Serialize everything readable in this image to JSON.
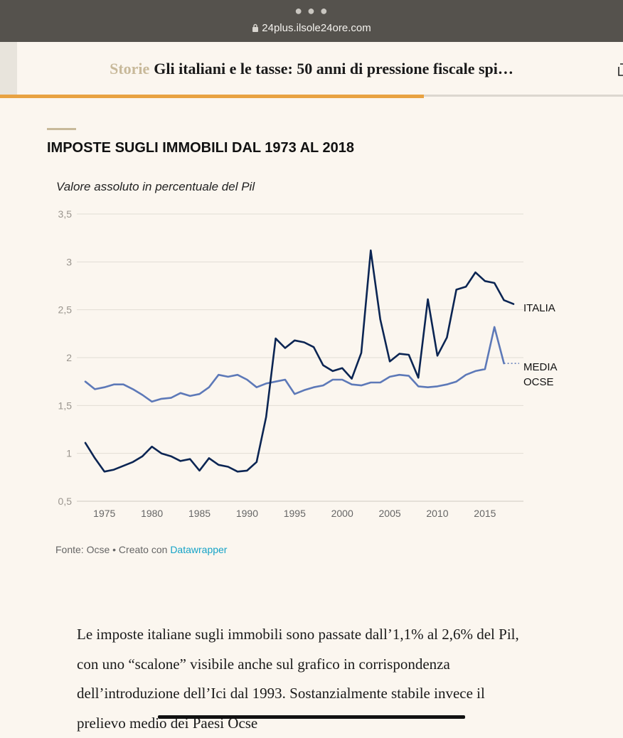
{
  "browser": {
    "url": "24plus.ilsole24ore.com"
  },
  "header": {
    "section": "Storie",
    "title": "Gli italiani e le tasse: 50 anni di pressione fiscale spi…",
    "progress": 0.68
  },
  "chart": {
    "title": "IMPOSTE SUGLI IMMOBILI DAL 1973 AL 2018",
    "subtitle": "Valore assoluto in percentuale del Pil"
  },
  "chart_data": {
    "type": "line",
    "title": "IMPOSTE SUGLI IMMOBILI DAL 1973 AL 2018",
    "subtitle": "Valore assoluto in percentuale del Pil",
    "ylim": [
      0.5,
      3.5
    ],
    "xlim": [
      1973,
      2018
    ],
    "y_ticks": [
      "3,5",
      "3",
      "2,5",
      "2",
      "1,5",
      "1",
      "0,5"
    ],
    "x_ticks": [
      "1975",
      "1980",
      "1985",
      "1990",
      "1995",
      "2000",
      "2005",
      "2010",
      "2015"
    ],
    "grid": true,
    "series": [
      {
        "name": "ITALIA",
        "color": "#0b2553",
        "x": [
          1973,
          1974,
          1975,
          1976,
          1977,
          1978,
          1979,
          1980,
          1981,
          1982,
          1983,
          1984,
          1985,
          1986,
          1987,
          1988,
          1989,
          1990,
          1991,
          1992,
          1993,
          1994,
          1995,
          1996,
          1997,
          1998,
          1999,
          2000,
          2001,
          2002,
          2003,
          2004,
          2005,
          2006,
          2007,
          2008,
          2009,
          2010,
          2011,
          2012,
          2013,
          2014,
          2015,
          2016,
          2017,
          2018
        ],
        "y": [
          1.11,
          0.95,
          0.81,
          0.83,
          0.87,
          0.91,
          0.97,
          1.07,
          1.0,
          0.97,
          0.92,
          0.94,
          0.82,
          0.95,
          0.88,
          0.86,
          0.81,
          0.82,
          0.91,
          1.38,
          2.2,
          2.1,
          2.18,
          2.16,
          2.11,
          1.92,
          1.86,
          1.89,
          1.78,
          2.05,
          3.12,
          2.4,
          1.96,
          2.04,
          2.03,
          1.79,
          2.61,
          2.02,
          2.21,
          2.71,
          2.74,
          2.89,
          2.8,
          2.78,
          2.6,
          2.56
        ]
      },
      {
        "name": "MEDIA OCSE",
        "color": "#5d79b8",
        "x": [
          1973,
          1974,
          1975,
          1976,
          1977,
          1978,
          1979,
          1980,
          1981,
          1982,
          1983,
          1984,
          1985,
          1986,
          1987,
          1988,
          1989,
          1990,
          1991,
          1992,
          1993,
          1994,
          1995,
          1996,
          1997,
          1998,
          1999,
          2000,
          2001,
          2002,
          2003,
          2004,
          2005,
          2006,
          2007,
          2008,
          2009,
          2010,
          2011,
          2012,
          2013,
          2014,
          2015,
          2016,
          2017
        ],
        "y": [
          1.75,
          1.67,
          1.69,
          1.72,
          1.72,
          1.67,
          1.61,
          1.54,
          1.57,
          1.58,
          1.63,
          1.6,
          1.62,
          1.69,
          1.82,
          1.8,
          1.82,
          1.77,
          1.69,
          1.73,
          1.75,
          1.77,
          1.62,
          1.66,
          1.69,
          1.71,
          1.77,
          1.77,
          1.72,
          1.71,
          1.74,
          1.74,
          1.8,
          1.82,
          1.81,
          1.7,
          1.69,
          1.7,
          1.72,
          1.75,
          1.82,
          1.86,
          1.88,
          2.32,
          1.94
        ],
        "dashed_to": [
          2018,
          1.94
        ]
      }
    ],
    "series_labels": {
      "italia": "ITALIA",
      "media_line1": "MEDIA",
      "media_line2": "OCSE"
    }
  },
  "source": {
    "prefix": "Fonte: Ocse • Creato con ",
    "link": "Datawrapper"
  },
  "article": {
    "paragraph": "Le imposte italiane sugli immobili sono passate dall’1,1% al 2,6% del Pil, con uno “scalone” visibile anche sul grafico in corrispondenza dell’introduzione dell’Ici dal 1993. Sostanzialmente stabile invece il prelievo medio dei Paesi Ocse"
  }
}
